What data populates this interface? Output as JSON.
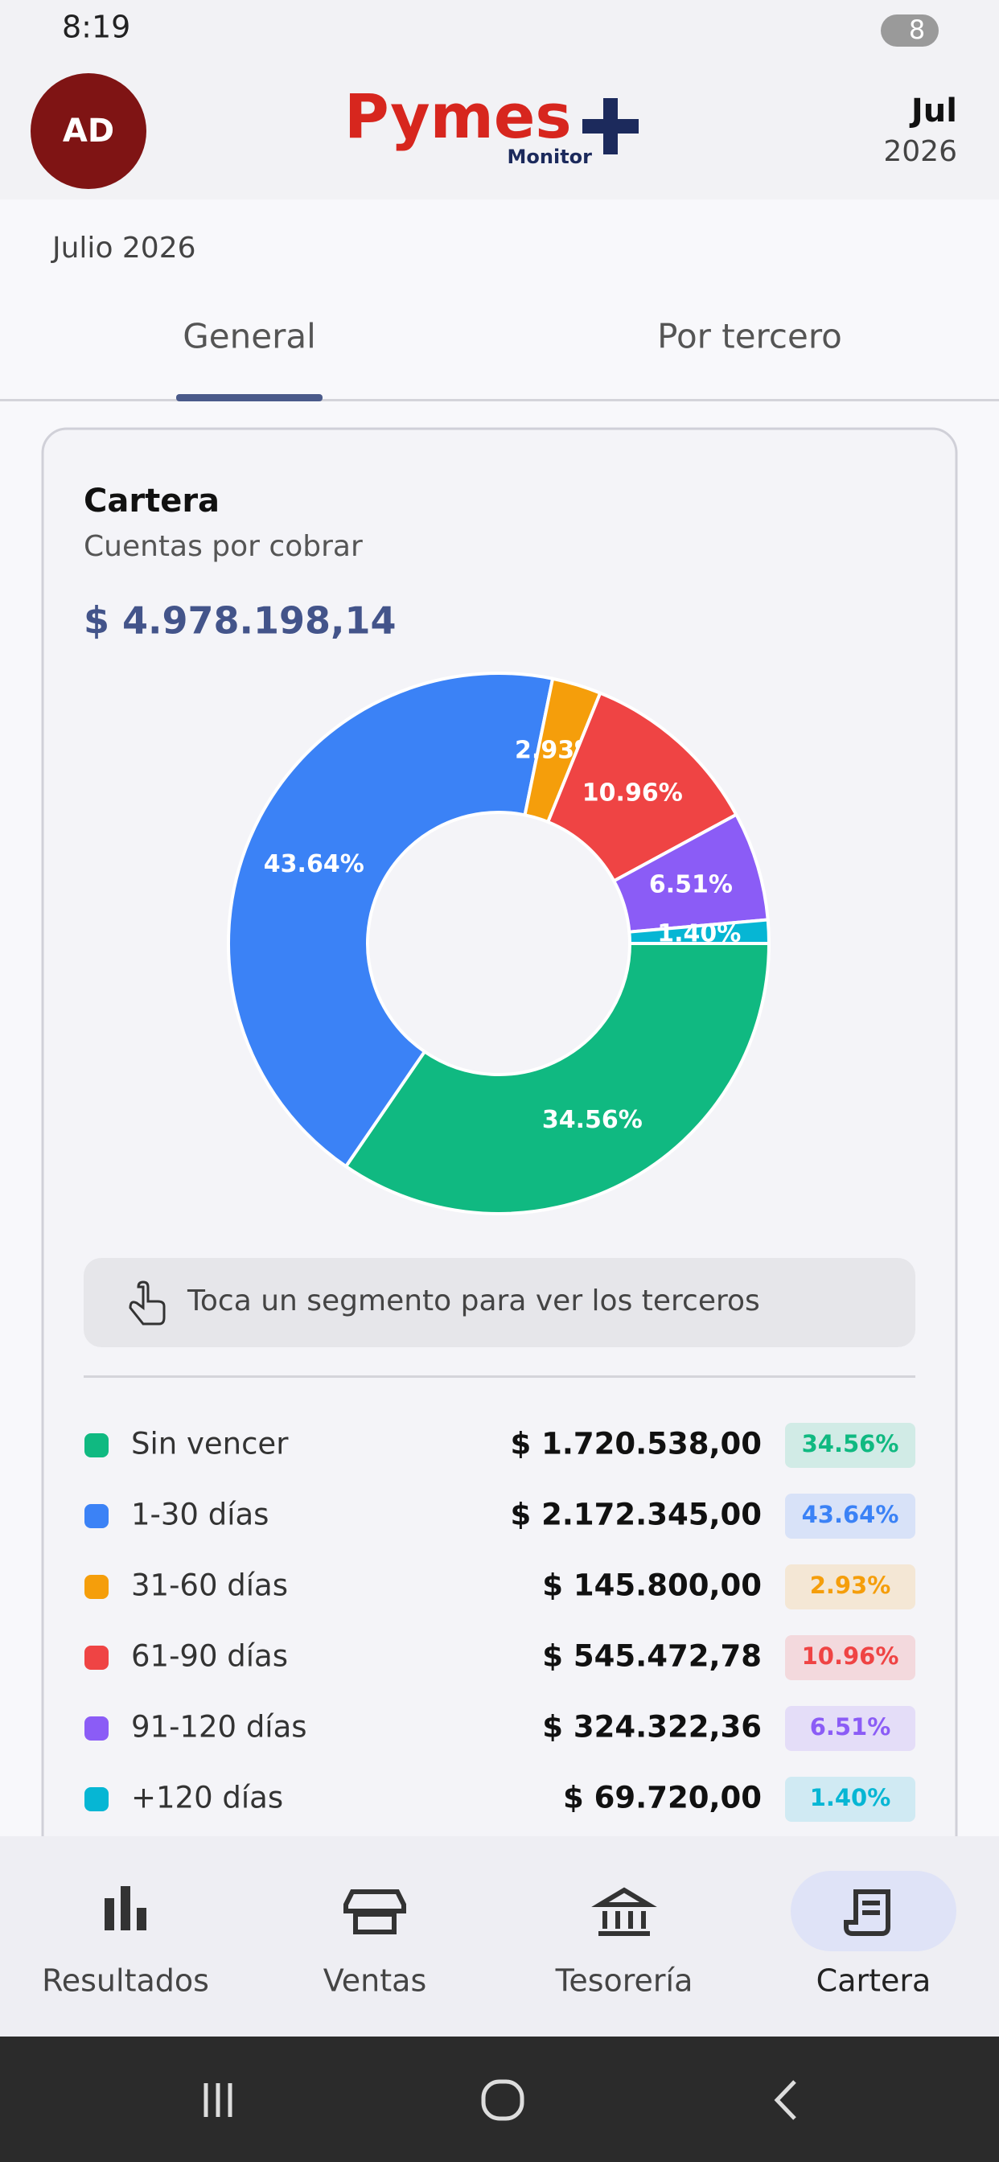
{
  "status_bar": {
    "time": "8:19",
    "battery": "8"
  },
  "header": {
    "avatar": "AD",
    "logo": "Pymes",
    "logo_sub": "Monitor",
    "month": "Jul",
    "year": "2026"
  },
  "period": "Julio 2026",
  "tabs": [
    "General",
    "Por tercero"
  ],
  "card": {
    "title": "Cartera",
    "subtitle": "Cuentas por cobrar",
    "total": "$ 4.978.198,14",
    "hint": "Toca un segmento para ver los terceros"
  },
  "chart_data": {
    "type": "pie",
    "categories": [
      "Sin vencer",
      "1-30 días",
      "31-60 días",
      "61-90 días",
      "91-120 días",
      "+120 días"
    ],
    "values": [
      34.56,
      43.64,
      2.93,
      10.96,
      6.51,
      1.4
    ],
    "value_labels": [
      "34.56%",
      "43.64%",
      "2.93%",
      "10.96%",
      "6.51%",
      "1.40%"
    ],
    "amounts": [
      "$ 1.720.538,00",
      "$ 2.172.345,00",
      "$ 145.800,00",
      "$ 545.472,78",
      "$ 324.322,36",
      "$ 69.720,00"
    ],
    "colors": [
      "#10b981",
      "#3b82f6",
      "#f59e0b",
      "#ef4444",
      "#8b5cf6",
      "#06b6d4"
    ]
  },
  "nav": [
    "Resultados",
    "Ventas",
    "Tesorería",
    "Cartera"
  ]
}
